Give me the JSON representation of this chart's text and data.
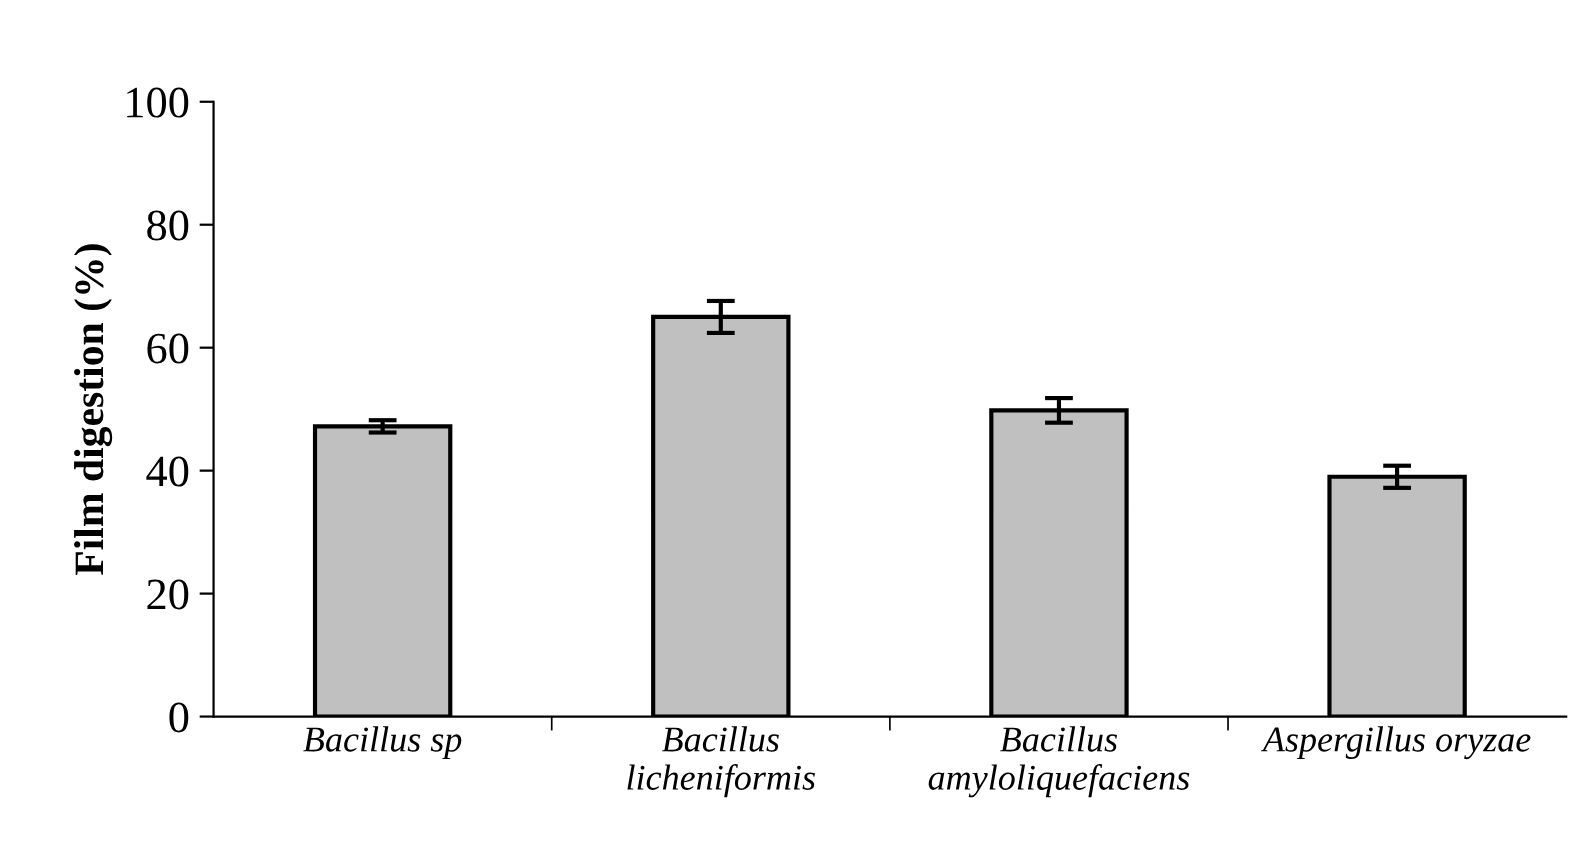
{
  "chart_data": {
    "type": "bar",
    "ylabel": "Film digestion (%)",
    "categories": [
      "Bacillus sp",
      "Bacillus\nlicheniformis",
      "Bacillus\namyloliquefaciens",
      "Aspergillus oryzae"
    ],
    "values": [
      47.2,
      65.0,
      49.8,
      39.0
    ],
    "errors": [
      1.0,
      2.6,
      2.0,
      1.8
    ],
    "color": "#c0c0c0",
    "ylim": [
      0,
      100
    ],
    "yticks": [
      0,
      20,
      40,
      60,
      80,
      100
    ],
    "grid": false
  }
}
